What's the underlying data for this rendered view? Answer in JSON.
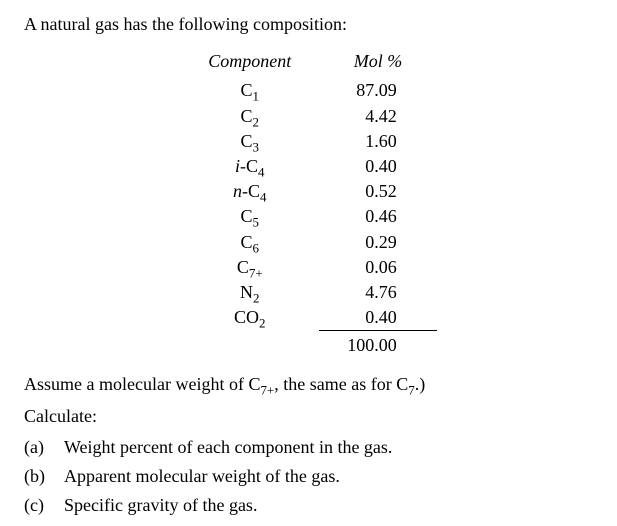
{
  "intro": "A natural gas has the following composition:",
  "table": {
    "headers": {
      "component": "Component",
      "mol": "Mol %"
    },
    "rows": [
      {
        "component_html": "C<span class=\"sub\">1</span>",
        "mol": "87.09"
      },
      {
        "component_html": "C<span class=\"sub\">2</span>",
        "mol": "4.42"
      },
      {
        "component_html": "C<span class=\"sub\">3</span>",
        "mol": "1.60"
      },
      {
        "component_html": "<span class=\"italic\">i</span>-C<span class=\"sub\">4</span>",
        "mol": "0.40"
      },
      {
        "component_html": "<span class=\"italic\">n</span>-C<span class=\"sub\">4</span>",
        "mol": "0.52"
      },
      {
        "component_html": "C<span class=\"sub\">5</span>",
        "mol": "0.46"
      },
      {
        "component_html": "C<span class=\"sub\">6</span>",
        "mol": "0.29"
      },
      {
        "component_html": "C<span class=\"sub\">7+</span>",
        "mol": "0.06"
      },
      {
        "component_html": "N<span class=\"sub\">2</span>",
        "mol": "4.76"
      },
      {
        "component_html": "CO<span class=\"sub\">2</span>",
        "mol": "0.40"
      }
    ],
    "total": "100.00"
  },
  "assume_html": "Assume a molecular weight of C<span class=\"sub\">7+</span>, the same as for C<span class=\"sub\">7</span>.)",
  "calculate_label": "Calculate:",
  "questions": [
    {
      "mark": "(a)",
      "text": "Weight percent of each component in the gas."
    },
    {
      "mark": "(b)",
      "text": "Apparent molecular weight of the gas."
    },
    {
      "mark": "(c)",
      "text": "Specific gravity of the gas."
    }
  ],
  "style": {
    "font_family": "Times New Roman",
    "font_size_pt": 14,
    "text_color": "#000000",
    "background_color": "#ffffff"
  }
}
